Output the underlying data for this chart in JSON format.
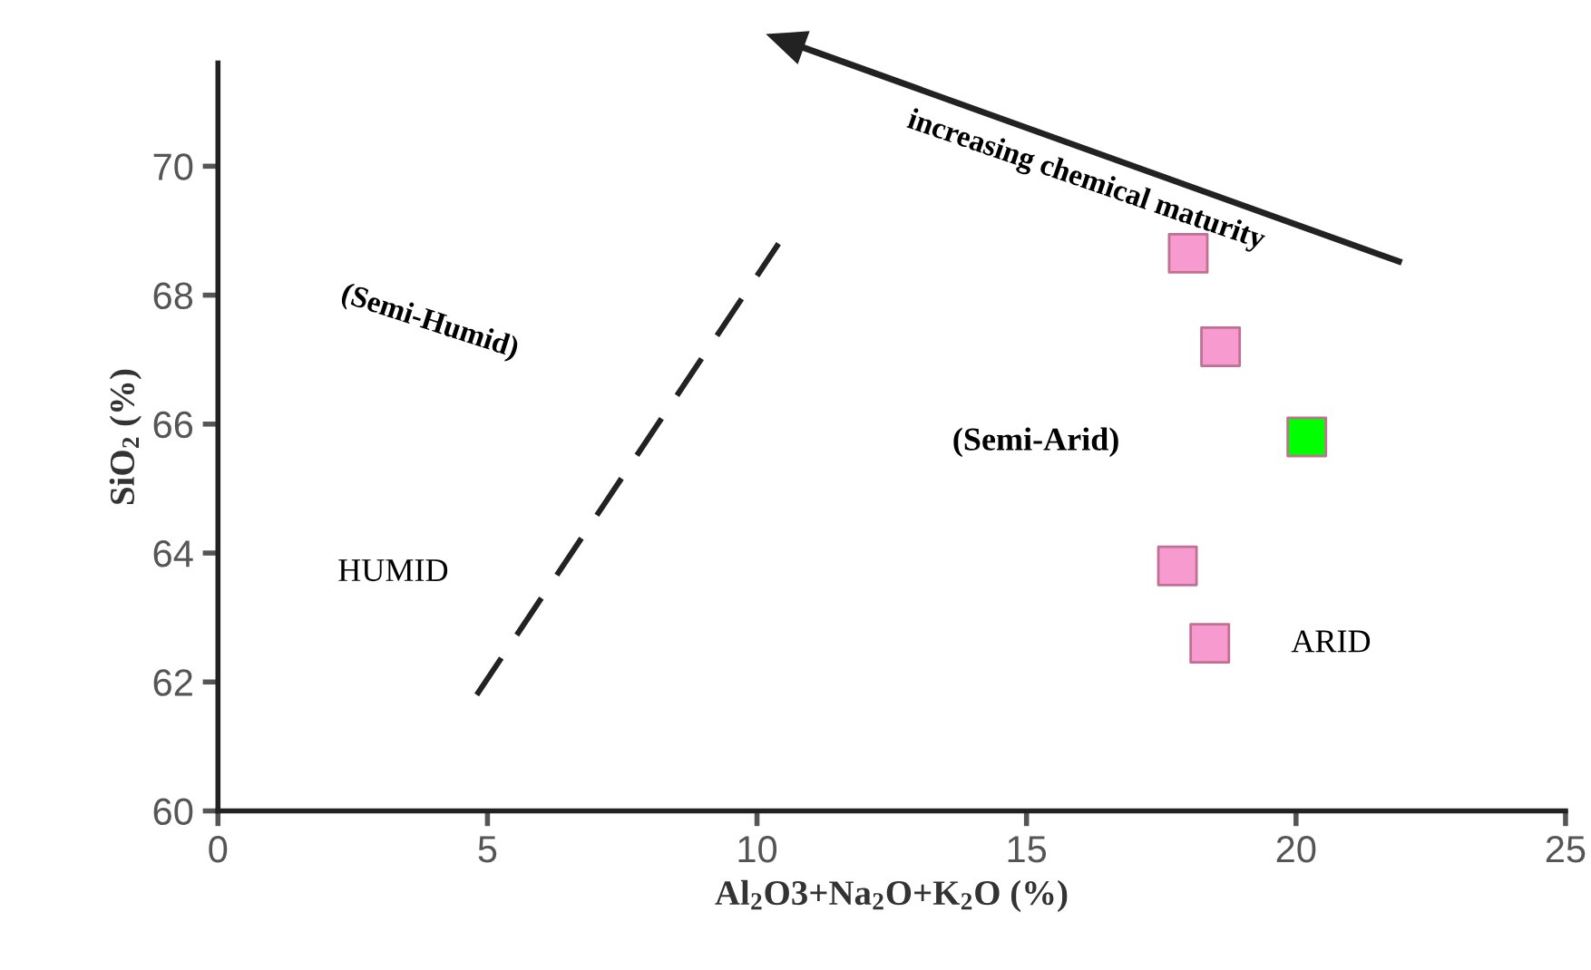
{
  "chart_data": {
    "type": "scatter",
    "xlabel": "Al$_{2}$O3+Na$_{2}$O+K$_{2}$O (%)",
    "ylabel": "SiO$_{2}$ (%)",
    "xlim": [
      0,
      25
    ],
    "xticks": [
      0,
      5,
      10,
      15,
      20,
      25
    ],
    "ylim": [
      60,
      71.6
    ],
    "yticks": [
      60,
      62,
      64,
      66,
      68,
      70
    ],
    "grid": false,
    "marker": "square",
    "series": [
      {
        "color": "#f79ad0",
        "x": [
          18.0,
          18.6,
          17.8,
          18.4
        ],
        "values": [
          68.65,
          67.2,
          63.8,
          62.6
        ]
      },
      {
        "color": "#00ff00",
        "x": [
          20.2
        ],
        "values": [
          65.8
        ]
      },
      {
        "type": "line",
        "marker": "none",
        "color": "#222222",
        "line_style": "dashed",
        "x": [
          4.8,
          10.4
        ],
        "values": [
          61.8,
          68.8
        ]
      }
    ],
    "annotations": [
      "increasing chemical maturity",
      "(Semi-Humid)",
      "HUMID",
      "(Semi-Arid)",
      "ARID"
    ]
  }
}
